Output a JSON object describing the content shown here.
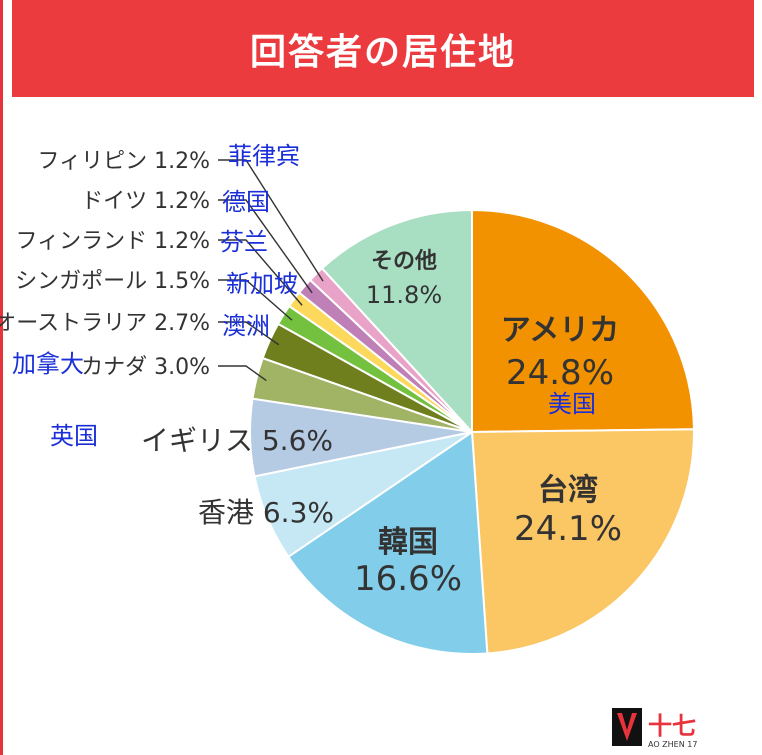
{
  "header": {
    "title": "回答者の居住地"
  },
  "chart_data": {
    "type": "pie",
    "title": "回答者の居住地",
    "slices": [
      {
        "label": "アメリカ",
        "value": 24.8,
        "display": "24.8%",
        "color": "#f39200",
        "translation": "美国"
      },
      {
        "label": "台湾",
        "value": 24.1,
        "display": "24.1%",
        "color": "#fbc664"
      },
      {
        "label": "韓国",
        "value": 16.6,
        "display": "16.6%",
        "color": "#82cde9"
      },
      {
        "label": "香港",
        "value": 6.3,
        "display": "6.3%",
        "color": "#c6e8f5"
      },
      {
        "label": "イギリス",
        "value": 5.6,
        "display": "5.6%",
        "color": "#b5cbe3",
        "translation": "英国"
      },
      {
        "label": "カナダ",
        "value": 3.0,
        "display": "3.0%",
        "color": "#a1b465",
        "translation": "加拿大"
      },
      {
        "label": "オーストラリア",
        "value": 2.7,
        "display": "2.7%",
        "color": "#6f7f1e",
        "translation": "澳洲"
      },
      {
        "label": "シンガポール",
        "value": 1.5,
        "display": "1.5%",
        "color": "#74c03f",
        "translation": "新加坡"
      },
      {
        "label": "フィンランド",
        "value": 1.2,
        "display": "1.2%",
        "color": "#fcd85d",
        "translation": "芬兰"
      },
      {
        "label": "ドイツ",
        "value": 1.2,
        "display": "1.2%",
        "color": "#bf7fb7",
        "translation": "德国"
      },
      {
        "label": "フィリピン",
        "value": 1.2,
        "display": "1.2%",
        "color": "#eaa3c8",
        "translation": "菲律宾"
      },
      {
        "label": "その他",
        "value": 11.8,
        "display": "11.8%",
        "color": "#a8dfc2"
      }
    ]
  },
  "logo": {
    "mark": "十七",
    "text": "AO ZHEN 17"
  },
  "colors": {
    "header": "#ec3b3f",
    "translation": "#1a2fd8",
    "label": "#333333"
  }
}
